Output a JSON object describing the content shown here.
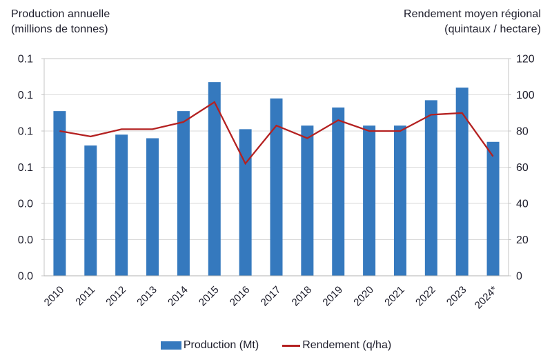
{
  "header": {
    "left_axis_title_line1": "Production annuelle",
    "left_axis_title_line2": "(millions de tonnes)",
    "right_axis_title_line1": "Rendement moyen régional",
    "right_axis_title_line2": "(quintaux / hectare)"
  },
  "legend": {
    "production_label": "Production (Mt)",
    "rendement_label": "Rendement (q/ha)"
  },
  "colors": {
    "bar": "#3579be",
    "line": "#b42121",
    "grid": "#dadada",
    "border": "#c4c4c4",
    "axis_line": "#b2b2b2",
    "text": "#1d1d2b"
  },
  "chart_data": {
    "type": "bar",
    "title": "",
    "categories": [
      "2010",
      "2011",
      "2012",
      "2013",
      "2014",
      "2015",
      "2016",
      "2017",
      "2018",
      "2019",
      "2020",
      "2021",
      "2022",
      "2023",
      "2024*"
    ],
    "series": [
      {
        "name": "Production (Mt)",
        "type": "bar",
        "axis": "left",
        "unit": "millions de tonnes",
        "values": [
          0.091,
          0.072,
          0.078,
          0.076,
          0.091,
          0.107,
          0.081,
          0.098,
          0.083,
          0.093,
          0.083,
          0.083,
          0.097,
          0.104,
          0.074
        ]
      },
      {
        "name": "Rendement (q/ha)",
        "type": "line",
        "axis": "right",
        "unit": "quintaux / hectare",
        "values": [
          80,
          77,
          81,
          81,
          85,
          96,
          62,
          83,
          76,
          86,
          80,
          80,
          89,
          90,
          66
        ]
      }
    ],
    "left_axis": {
      "title": "Production annuelle (millions de tonnes)",
      "tick_labels_displayed": [
        "0.1",
        "0.1",
        "0.1",
        "0.1",
        "0.0",
        "0.0",
        "0.0"
      ],
      "tick_values": [
        0.12,
        0.1,
        0.08,
        0.06,
        0.04,
        0.02,
        0.0
      ],
      "range": [
        0,
        0.12
      ]
    },
    "right_axis": {
      "title": "Rendement moyen régional (quintaux / hectare)",
      "tick_labels": [
        "120",
        "100",
        "80",
        "60",
        "40",
        "20",
        "0"
      ],
      "tick_values": [
        120,
        100,
        80,
        60,
        40,
        20,
        0
      ],
      "range": [
        0,
        120
      ]
    },
    "grid": true,
    "legend_position": "bottom"
  }
}
